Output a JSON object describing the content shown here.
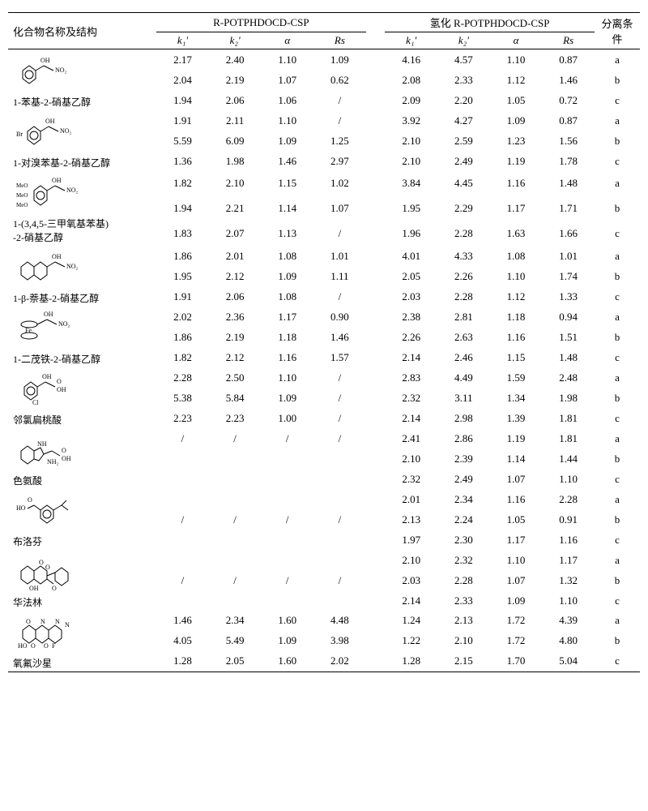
{
  "header": {
    "compound": "化合物名称及结构",
    "group1": "R-POTPHDOCD-CSP",
    "group2": "氢化 R-POTPHDOCD-CSP",
    "condition": "分离条件",
    "sub": [
      "k₁'",
      "k₂'",
      "α",
      "Rs",
      "k₁'",
      "k₂'",
      "α",
      "Rs"
    ]
  },
  "compounds": [
    {
      "name": "1-苯基-2-硝基乙醇",
      "svg": "phenyl-nitroethanol",
      "rows": [
        [
          "2.17",
          "2.40",
          "1.10",
          "1.09",
          "4.16",
          "4.57",
          "1.10",
          "0.87",
          "a"
        ],
        [
          "2.04",
          "2.19",
          "1.07",
          "0.62",
          "2.08",
          "2.33",
          "1.12",
          "1.46",
          "b"
        ],
        [
          "1.94",
          "2.06",
          "1.06",
          "/",
          "2.09",
          "2.20",
          "1.05",
          "0.72",
          "c"
        ]
      ]
    },
    {
      "name": "1-对溴苯基-2-硝基乙醇",
      "svg": "bromophenyl-nitroethanol",
      "rows": [
        [
          "1.91",
          "2.11",
          "1.10",
          "/",
          "3.92",
          "4.27",
          "1.09",
          "0.87",
          "a"
        ],
        [
          "5.59",
          "6.09",
          "1.09",
          "1.25",
          "2.10",
          "2.59",
          "1.23",
          "1.56",
          "b"
        ],
        [
          "1.36",
          "1.98",
          "1.46",
          "2.97",
          "2.10",
          "2.49",
          "1.19",
          "1.78",
          "c"
        ]
      ]
    },
    {
      "name": "1-(3,4,5-三甲氧基苯基)\n-2-硝基乙醇",
      "svg": "trimethoxy-nitroethanol",
      "rows": [
        [
          "1.82",
          "2.10",
          "1.15",
          "1.02",
          "3.84",
          "4.45",
          "1.16",
          "1.48",
          "a"
        ],
        [
          "1.94",
          "2.21",
          "1.14",
          "1.07",
          "1.95",
          "2.29",
          "1.17",
          "1.71",
          "b"
        ],
        [
          "1.83",
          "2.07",
          "1.13",
          "/",
          "1.96",
          "2.28",
          "1.63",
          "1.66",
          "c"
        ]
      ]
    },
    {
      "name": "1-β-萘基-2-硝基乙醇",
      "svg": "naphthyl-nitroethanol",
      "rows": [
        [
          "1.86",
          "2.01",
          "1.08",
          "1.01",
          "4.01",
          "4.33",
          "1.08",
          "1.01",
          "a"
        ],
        [
          "1.95",
          "2.12",
          "1.09",
          "1.11",
          "2.05",
          "2.26",
          "1.10",
          "1.74",
          "b"
        ],
        [
          "1.91",
          "2.06",
          "1.08",
          "/",
          "2.03",
          "2.28",
          "1.12",
          "1.33",
          "c"
        ]
      ]
    },
    {
      "name": "1-二茂铁-2-硝基乙醇",
      "svg": "ferrocenyl-nitroethanol",
      "rows": [
        [
          "2.02",
          "2.36",
          "1.17",
          "0.90",
          "2.38",
          "2.81",
          "1.18",
          "0.94",
          "a"
        ],
        [
          "1.86",
          "2.19",
          "1.18",
          "1.46",
          "2.26",
          "2.63",
          "1.16",
          "1.51",
          "b"
        ],
        [
          "1.82",
          "2.12",
          "1.16",
          "1.57",
          "2.14",
          "2.46",
          "1.15",
          "1.48",
          "c"
        ]
      ]
    },
    {
      "name": "邻氯扁桃酸",
      "svg": "chloromandelic",
      "rows": [
        [
          "2.28",
          "2.50",
          "1.10",
          "/",
          "2.83",
          "4.49",
          "1.59",
          "2.48",
          "a"
        ],
        [
          "5.38",
          "5.84",
          "1.09",
          "/",
          "2.32",
          "3.11",
          "1.34",
          "1.98",
          "b"
        ],
        [
          "2.23",
          "2.23",
          "1.00",
          "/",
          "2.14",
          "2.98",
          "1.39",
          "1.81",
          "c"
        ]
      ]
    },
    {
      "name": "色氨酸",
      "svg": "tryptophan",
      "rows": [
        [
          "/",
          "/",
          "/",
          "/",
          "2.41",
          "2.86",
          "1.19",
          "1.81",
          "a"
        ],
        [
          "",
          "",
          "",
          "",
          "2.10",
          "2.39",
          "1.14",
          "1.44",
          "b"
        ],
        [
          "",
          "",
          "",
          "",
          "2.32",
          "2.49",
          "1.07",
          "1.10",
          "c"
        ]
      ]
    },
    {
      "name": "布洛芬",
      "svg": "ibuprofen",
      "rows": [
        [
          "",
          "",
          "",
          "",
          "2.01",
          "2.34",
          "1.16",
          "2.28",
          "a"
        ],
        [
          "/",
          "/",
          "/",
          "/",
          "2.13",
          "2.24",
          "1.05",
          "0.91",
          "b"
        ],
        [
          "",
          "",
          "",
          "",
          "1.97",
          "2.30",
          "1.17",
          "1.16",
          "c"
        ]
      ]
    },
    {
      "name": "华法林",
      "svg": "warfarin",
      "rows": [
        [
          "",
          "",
          "",
          "",
          "2.10",
          "2.32",
          "1.10",
          "1.17",
          "a"
        ],
        [
          "/",
          "/",
          "/",
          "/",
          "2.03",
          "2.28",
          "1.07",
          "1.32",
          "b"
        ],
        [
          "",
          "",
          "",
          "",
          "2.14",
          "2.33",
          "1.09",
          "1.10",
          "c"
        ]
      ]
    },
    {
      "name": "氧氟沙星",
      "svg": "ofloxacin",
      "rows": [
        [
          "1.46",
          "2.34",
          "1.60",
          "4.48",
          "1.24",
          "2.13",
          "1.72",
          "4.39",
          "a"
        ],
        [
          "4.05",
          "5.49",
          "1.09",
          "3.98",
          "1.22",
          "2.10",
          "1.72",
          "4.80",
          "b"
        ],
        [
          "1.28",
          "2.05",
          "1.60",
          "2.02",
          "1.28",
          "2.15",
          "1.70",
          "5.04",
          "c"
        ]
      ]
    }
  ],
  "style": {
    "text_color": "#000000",
    "background_color": "#ffffff",
    "line_color": "#000000",
    "fontsize_body": 13,
    "fontsize_name": 12,
    "fontsize_sub": 9
  }
}
